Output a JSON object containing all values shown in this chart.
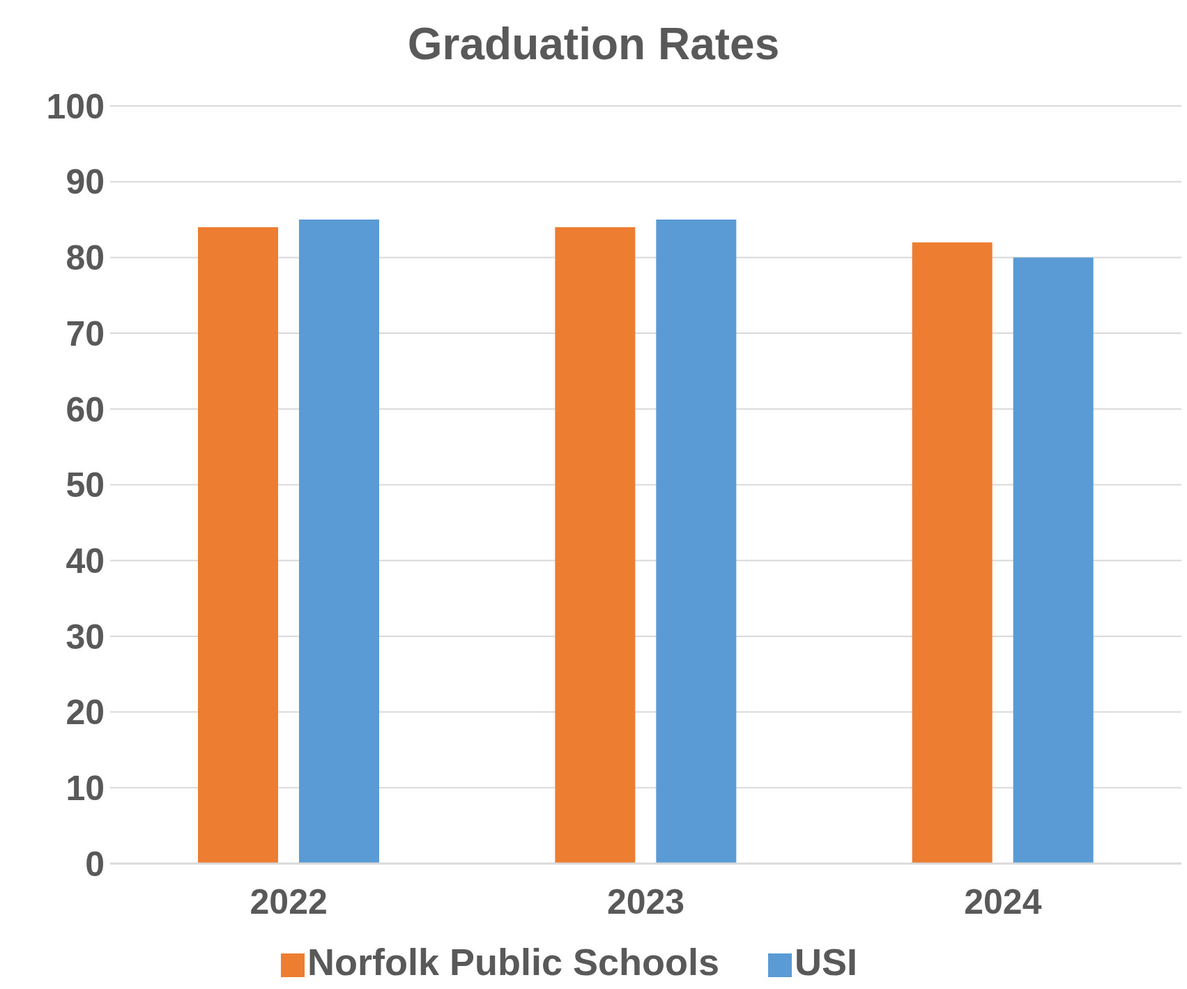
{
  "chart_data": {
    "type": "bar",
    "title": "Graduation Rates",
    "categories": [
      "2022",
      "2023",
      "2024"
    ],
    "series": [
      {
        "name": "Norfolk Public Schools",
        "color": "#ed7d31",
        "values": [
          84,
          84,
          82
        ]
      },
      {
        "name": "USI",
        "color": "#5b9bd5",
        "values": [
          85,
          85,
          80
        ]
      }
    ],
    "ylim": [
      0,
      100
    ],
    "yticks": [
      0,
      10,
      20,
      30,
      40,
      50,
      60,
      70,
      80,
      90,
      100
    ],
    "grid": "y",
    "legend": "bottom"
  }
}
